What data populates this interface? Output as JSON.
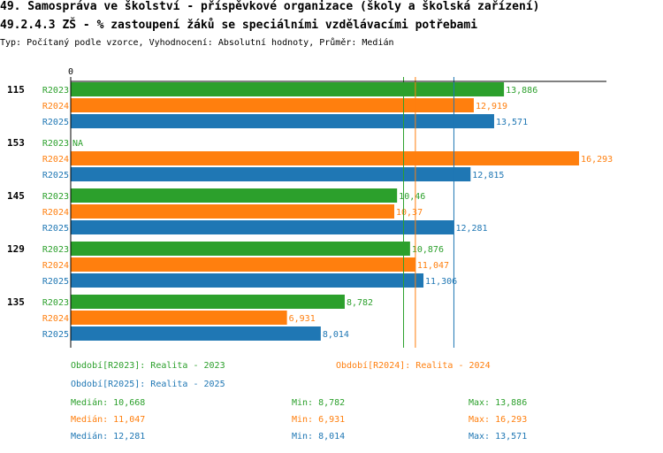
{
  "header": {
    "title": "49. Samospráva ve školství - příspěvkové organizace (školy a školská zařízení)",
    "subtitle": "49.2.4.3 ZŠ - % zastoupení žáků se speciálními vzdělávacími potřebami",
    "type_line": "Typ: Počítaný podle vzorce, Vyhodnocení: Absolutní hodnoty, Průměr: Medián"
  },
  "colors": {
    "R2023": "#2ca02c",
    "R2024": "#ff7f0e",
    "R2025": "#1f77b4"
  },
  "chart_data": {
    "type": "bar",
    "orientation": "horizontal",
    "x_zero_label": "0",
    "xlim": [
      0,
      17
    ],
    "categories": [
      "115",
      "153",
      "145",
      "129",
      "135"
    ],
    "series": [
      {
        "name": "R2023",
        "values": [
          13.886,
          null,
          10.46,
          10.876,
          8.782
        ],
        "labels": [
          "13,886",
          "NA",
          "10,46",
          "10,876",
          "8,782"
        ]
      },
      {
        "name": "R2024",
        "values": [
          12.919,
          16.293,
          10.37,
          11.047,
          6.931
        ],
        "labels": [
          "12,919",
          "16,293",
          "10,37",
          "11,047",
          "6,931"
        ]
      },
      {
        "name": "R2025",
        "values": [
          13.571,
          12.815,
          12.281,
          11.306,
          8.014
        ],
        "labels": [
          "13,571",
          "12,815",
          "12,281",
          "11,306",
          "8,014"
        ]
      }
    ],
    "median_lines": [
      {
        "series": "R2023",
        "value": 10.668
      },
      {
        "series": "R2024",
        "value": 11.047
      },
      {
        "series": "R2025",
        "value": 12.281
      }
    ]
  },
  "legend": {
    "periods": [
      {
        "series": "R2023",
        "label": "Období[R2023]: Realita - 2023"
      },
      {
        "series": "R2024",
        "label": "Období[R2024]: Realita - 2024"
      },
      {
        "series": "R2025",
        "label": "Období[R2025]: Realita - 2025"
      }
    ],
    "stats": [
      {
        "series": "R2023",
        "median": "Medián: 10,668",
        "min": "Min: 8,782",
        "max": "Max: 13,886"
      },
      {
        "series": "R2024",
        "median": "Medián: 11,047",
        "min": "Min: 6,931",
        "max": "Max: 16,293"
      },
      {
        "series": "R2025",
        "median": "Medián: 12,281",
        "min": "Min: 8,014",
        "max": "Max: 13,571"
      }
    ]
  }
}
